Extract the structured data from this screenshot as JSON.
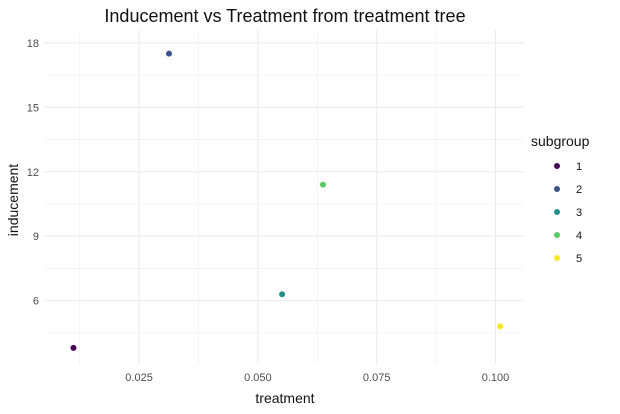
{
  "chart_data": {
    "type": "scatter",
    "title": "Inducement vs Treatment from treatment tree",
    "xlabel": "treatment",
    "ylabel": "inducement",
    "xlim": [
      0.005,
      0.106
    ],
    "ylim": [
      3.05,
      18.6
    ],
    "x_ticks": [
      {
        "value": 0.025,
        "label": "0.025"
      },
      {
        "value": 0.05,
        "label": "0.050"
      },
      {
        "value": 0.075,
        "label": "0.075"
      },
      {
        "value": 0.1,
        "label": "0.100"
      }
    ],
    "y_ticks": [
      {
        "value": 6,
        "label": "6"
      },
      {
        "value": 9,
        "label": "9"
      },
      {
        "value": 12,
        "label": "12"
      },
      {
        "value": 15,
        "label": "15"
      },
      {
        "value": 18,
        "label": "18"
      }
    ],
    "grid": true,
    "legend": {
      "title": "subgroup",
      "position": "right"
    },
    "points": [
      {
        "subgroup": "1",
        "x": 0.0112,
        "y": 3.8,
        "color": "#440154"
      },
      {
        "subgroup": "2",
        "x": 0.0313,
        "y": 17.5,
        "color": "#3B528B"
      },
      {
        "subgroup": "3",
        "x": 0.0551,
        "y": 6.3,
        "color": "#21908C"
      },
      {
        "subgroup": "4",
        "x": 0.0637,
        "y": 11.4,
        "color": "#5DC863"
      },
      {
        "subgroup": "5",
        "x": 0.101,
        "y": 4.8,
        "color": "#FDE725"
      }
    ]
  }
}
